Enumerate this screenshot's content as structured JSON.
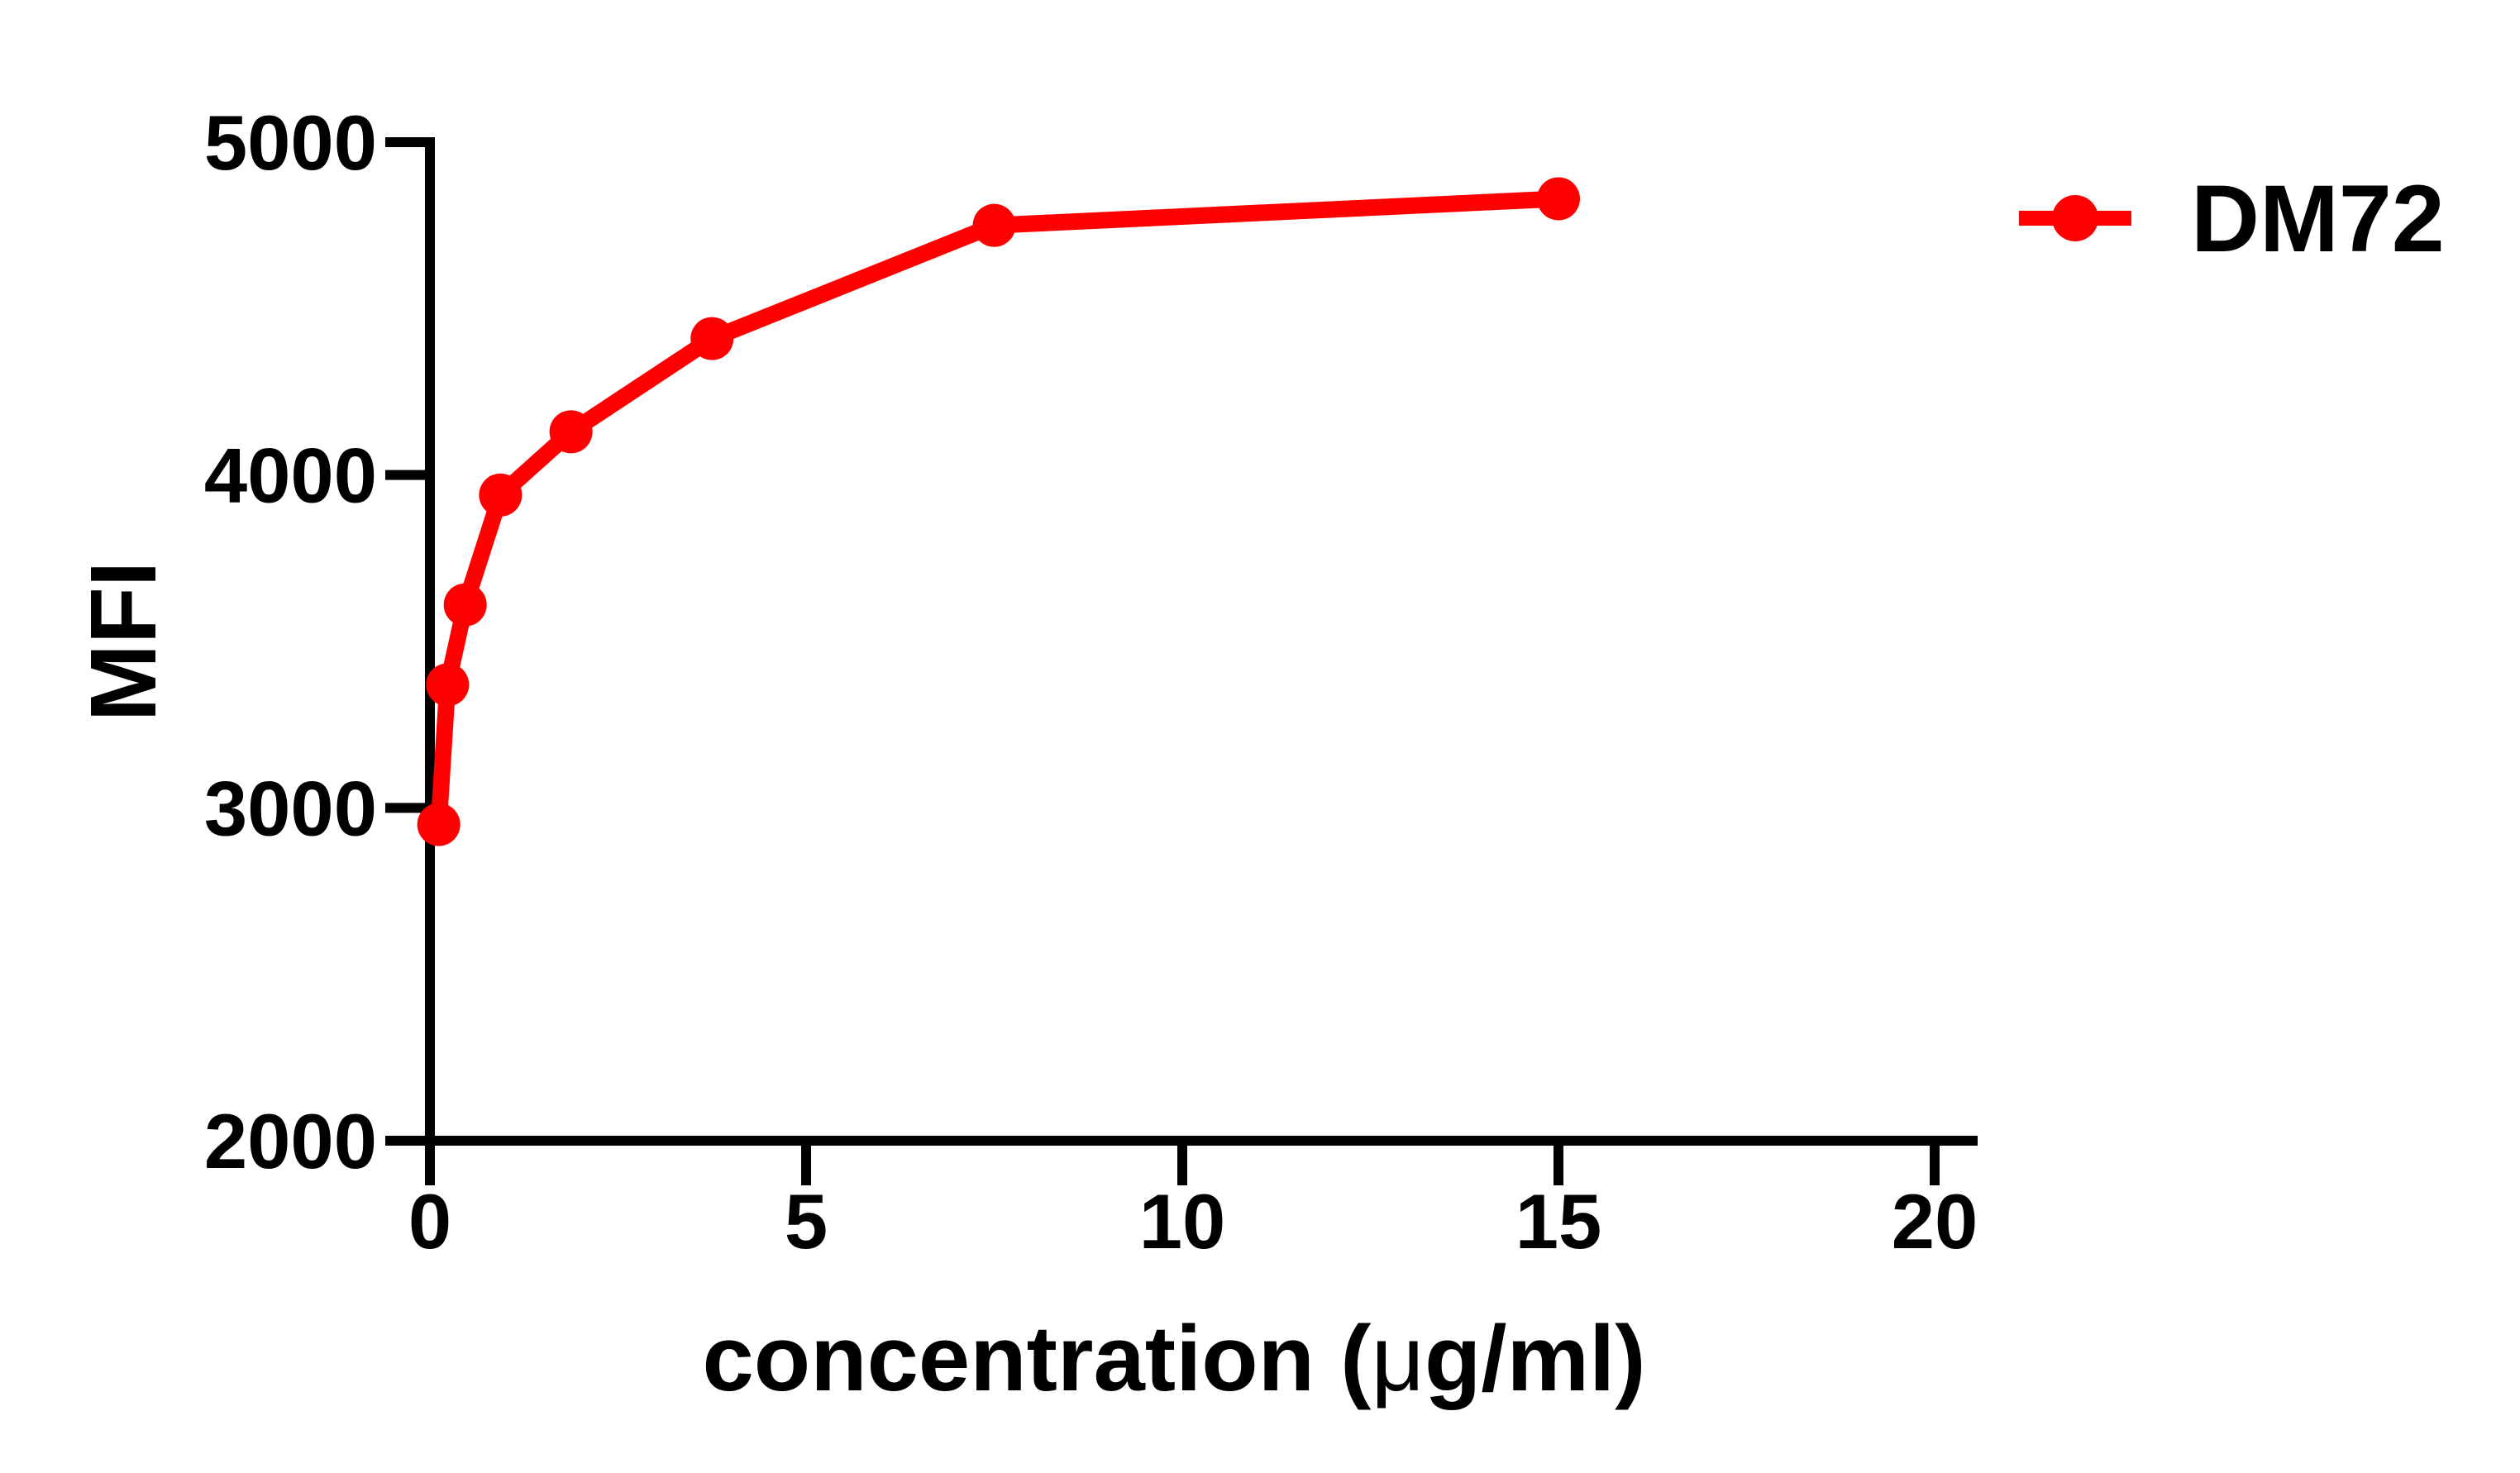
{
  "chart_data": {
    "type": "line",
    "title": "",
    "xlabel": "concentration (μg/ml)",
    "xlabel_parts": {
      "prefix": "concentration (",
      "mu": "μ",
      "suffix": "g/ml)"
    },
    "ylabel": "MFI",
    "xlim": [
      0,
      20
    ],
    "ylim": [
      2000,
      5000
    ],
    "xticks": [
      0,
      5,
      10,
      15,
      20
    ],
    "yticks": [
      2000,
      3000,
      4000,
      5000
    ],
    "grid": false,
    "legend": {
      "position": "top-right",
      "entries": [
        {
          "label": "DM72",
          "color": "#FE0000",
          "marker": "filled-circle"
        }
      ]
    },
    "series": [
      {
        "name": "DM72",
        "color": "#FE0000",
        "marker": "filled-circle",
        "x": [
          0.117,
          0.234,
          0.469,
          0.938,
          1.875,
          3.75,
          7.5,
          15
        ],
        "y": [
          2950,
          3370,
          3610,
          3940,
          4130,
          4410,
          4750,
          4830
        ]
      }
    ]
  },
  "colors": {
    "series_red": "#FE0000",
    "axis": "#000000",
    "background": "#FFFFFF"
  }
}
